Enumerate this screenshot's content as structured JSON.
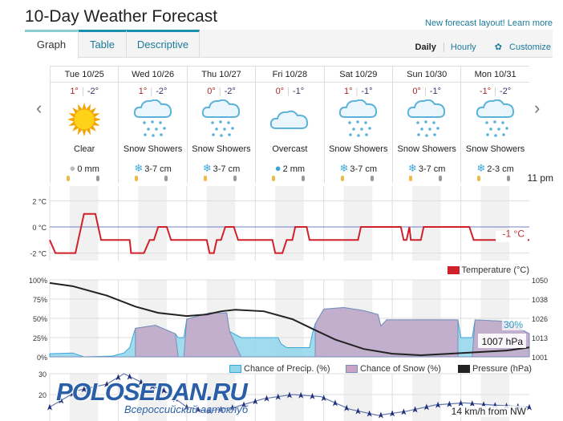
{
  "header": {
    "title": "10-Day Weather Forecast",
    "learn_more": "New forecast layout! Learn more"
  },
  "tabs": [
    {
      "label": "Graph"
    },
    {
      "label": "Table"
    },
    {
      "label": "Descriptive"
    }
  ],
  "view": {
    "daily": "Daily",
    "hourly": "Hourly",
    "customize": "Customize",
    "customize_icon": "gear-icon"
  },
  "nav": {
    "prev": "‹",
    "next": "›"
  },
  "days": [
    {
      "date": "Tue 10/25",
      "hi": "1°",
      "lo": "-2°",
      "icon": "sun",
      "cond": "Clear",
      "amount": "0 mm",
      "amount_icon": "drop-gray"
    },
    {
      "date": "Wed 10/26",
      "hi": "1°",
      "lo": "-2°",
      "icon": "snow",
      "cond": "Snow Showers",
      "amount": "3-7 cm",
      "amount_icon": "snowflake"
    },
    {
      "date": "Thu 10/27",
      "hi": "0°",
      "lo": "-2°",
      "icon": "snow",
      "cond": "Snow Showers",
      "amount": "3-7 cm",
      "amount_icon": "snowflake"
    },
    {
      "date": "Fri 10/28",
      "hi": "0°",
      "lo": "-1°",
      "icon": "cloud",
      "cond": "Overcast",
      "amount": "2 mm",
      "amount_icon": "drop"
    },
    {
      "date": "Sat 10/29",
      "hi": "1°",
      "lo": "-1°",
      "icon": "snow",
      "cond": "Snow Showers",
      "amount": "3-7 cm",
      "amount_icon": "snowflake"
    },
    {
      "date": "Sun 10/30",
      "hi": "0°",
      "lo": "-1°",
      "icon": "snow",
      "cond": "Snow Showers",
      "amount": "3-7 cm",
      "amount_icon": "snowflake"
    },
    {
      "date": "Mon 10/31",
      "hi": "-1°",
      "lo": "-2°",
      "icon": "snow",
      "cond": "Snow Showers",
      "amount": "2-3 cm",
      "amount_icon": "snowflake"
    }
  ],
  "hover_time": "11 pm",
  "chart_data": [
    {
      "type": "line",
      "title": "Temperature",
      "legend": "Temperature (°C)",
      "yticks": [
        "2 °C",
        "0 °C",
        "-2 °C"
      ],
      "ylim": [
        -3,
        3
      ],
      "current_label": "-1 °C",
      "color": "#d0202a",
      "points": [
        [
          0,
          -1
        ],
        [
          2,
          -2
        ],
        [
          9,
          -2
        ],
        [
          12,
          1
        ],
        [
          16,
          1
        ],
        [
          18,
          -1
        ],
        [
          28,
          -1
        ],
        [
          28.5,
          -2
        ],
        [
          33,
          -2
        ],
        [
          35,
          -1
        ],
        [
          36.5,
          -1
        ],
        [
          38,
          0
        ],
        [
          41,
          0
        ],
        [
          42.5,
          -1
        ],
        [
          55,
          -1
        ],
        [
          56,
          -2
        ],
        [
          57.5,
          -2
        ],
        [
          58.5,
          -1
        ],
        [
          60,
          -1
        ],
        [
          61.5,
          0
        ],
        [
          64.5,
          0
        ],
        [
          66,
          -1
        ],
        [
          78,
          -1
        ],
        [
          79,
          -2
        ],
        [
          81.5,
          -2
        ],
        [
          83,
          -1
        ],
        [
          85,
          -1
        ],
        [
          86,
          0
        ],
        [
          90,
          0
        ],
        [
          91,
          -1
        ],
        [
          108,
          -1
        ],
        [
          109,
          0
        ],
        [
          123,
          0
        ],
        [
          124,
          -1
        ],
        [
          125,
          -1
        ],
        [
          126,
          0
        ],
        [
          126.5,
          -1
        ],
        [
          130,
          -1
        ],
        [
          131,
          0
        ],
        [
          147,
          0
        ],
        [
          148.5,
          -1
        ],
        [
          168,
          -1
        ]
      ]
    },
    {
      "type": "area",
      "title": "Precipitation",
      "yticks_left": [
        "100%",
        "75%",
        "50%",
        "25%",
        "0%"
      ],
      "yticks_right": [
        "1050",
        "1038",
        "1026",
        "1013",
        "1001"
      ],
      "ylim": [
        0,
        100
      ],
      "ylim_right": [
        1001,
        1050
      ],
      "current_precip_label": "30%",
      "current_pressure_label": "1007 hPa",
      "series": [
        {
          "name": "Chance of Precip. (%)",
          "color": "#8fd6ea",
          "points": [
            [
              0,
              4
            ],
            [
              8,
              5
            ],
            [
              12,
              0
            ],
            [
              22,
              1
            ],
            [
              26,
              5
            ],
            [
              28,
              12
            ],
            [
              30,
              37
            ],
            [
              37,
              41
            ],
            [
              44,
              30
            ],
            [
              45,
              25
            ],
            [
              47,
              25
            ],
            [
              48,
              49
            ],
            [
              53,
              54
            ],
            [
              56,
              57
            ],
            [
              62,
              57
            ],
            [
              63,
              33
            ],
            [
              67,
              25
            ],
            [
              80,
              25
            ],
            [
              81,
              17
            ],
            [
              83,
              12
            ],
            [
              91,
              12
            ],
            [
              92,
              30
            ],
            [
              93,
              43
            ],
            [
              96,
              62
            ],
            [
              103,
              64
            ],
            [
              110,
              60
            ],
            [
              115,
              55
            ],
            [
              116,
              40
            ],
            [
              118,
              48
            ],
            [
              143,
              48
            ],
            [
              144,
              25
            ],
            [
              148,
              25
            ],
            [
              149,
              48
            ],
            [
              160,
              46
            ],
            [
              168,
              30
            ]
          ]
        },
        {
          "name": "Chance of Snow (%)",
          "color": "#c9a4c4",
          "points": [
            [
              0,
              0
            ],
            [
              30,
              0
            ],
            [
              30,
              37
            ],
            [
              37,
              41
            ],
            [
              44,
              30
            ],
            [
              45,
              0
            ],
            [
              47,
              0
            ],
            [
              48,
              49
            ],
            [
              53,
              54
            ],
            [
              56,
              57
            ],
            [
              62,
              57
            ],
            [
              63,
              33
            ],
            [
              67,
              0
            ],
            [
              93,
              0
            ],
            [
              93,
              43
            ],
            [
              96,
              62
            ],
            [
              103,
              64
            ],
            [
              110,
              60
            ],
            [
              115,
              55
            ],
            [
              116,
              40
            ],
            [
              118,
              48
            ],
            [
              143,
              48
            ],
            [
              143,
              0
            ],
            [
              148,
              0
            ],
            [
              149,
              48
            ],
            [
              160,
              46
            ],
            [
              168,
              30
            ]
          ]
        },
        {
          "name": "Pressure (hPa)",
          "color": "#222",
          "axis": "right",
          "points": [
            [
              0,
              1048
            ],
            [
              8,
              1046
            ],
            [
              20,
              1040
            ],
            [
              30,
              1033
            ],
            [
              38,
              1029
            ],
            [
              48,
              1027
            ],
            [
              55,
              1028
            ],
            [
              60,
              1030
            ],
            [
              65,
              1031
            ],
            [
              75,
              1030
            ],
            [
              85,
              1025
            ],
            [
              93,
              1018
            ],
            [
              100,
              1012
            ],
            [
              110,
              1006
            ],
            [
              120,
              1003
            ],
            [
              130,
              1002
            ],
            [
              140,
              1003
            ],
            [
              150,
              1004
            ],
            [
              160,
              1005
            ],
            [
              168,
              1007
            ]
          ]
        }
      ]
    },
    {
      "type": "line",
      "title": "Wind",
      "yticks": [
        "30",
        "20"
      ],
      "ylim": [
        10,
        30
      ],
      "current_label": "14 km/h from NW",
      "color": "#6677aa",
      "points": [
        [
          0,
          14
        ],
        [
          10,
          22
        ],
        [
          20,
          25
        ],
        [
          26,
          30
        ],
        [
          32,
          26
        ],
        [
          40,
          22
        ],
        [
          48,
          14
        ],
        [
          55,
          12
        ],
        [
          65,
          14
        ],
        [
          75,
          18
        ],
        [
          85,
          20
        ],
        [
          95,
          19
        ],
        [
          105,
          13
        ],
        [
          115,
          10
        ],
        [
          125,
          12
        ],
        [
          135,
          15
        ],
        [
          145,
          16
        ],
        [
          155,
          15
        ],
        [
          168,
          14
        ]
      ]
    }
  ],
  "watermark": {
    "brand": "POLOSEDAN.RU",
    "tagline": "Всероссийский автоклуб"
  }
}
